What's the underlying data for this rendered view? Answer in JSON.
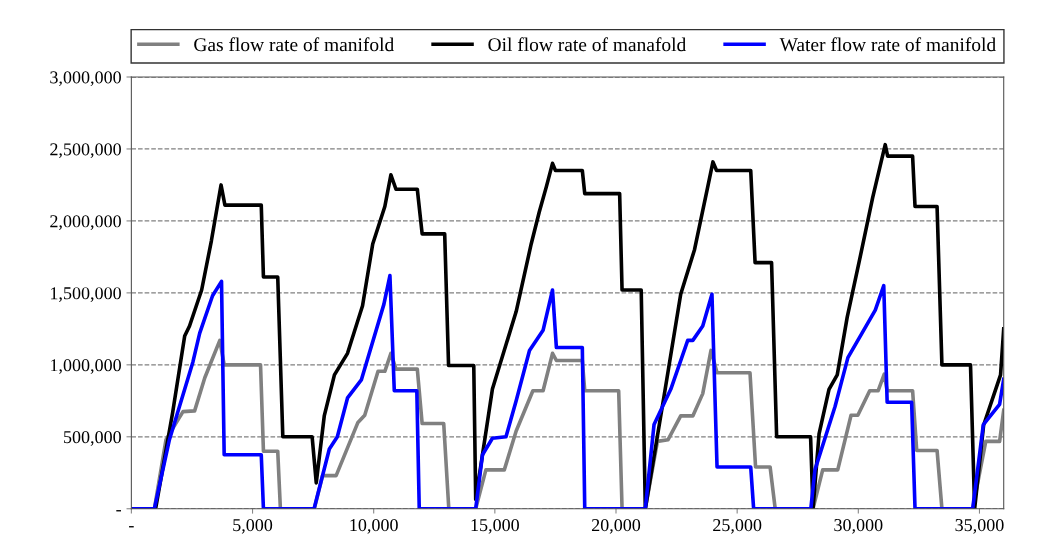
{
  "chart_data": {
    "type": "line",
    "xlim": [
      0,
      36000
    ],
    "xticks": [
      {
        "value": 0,
        "label": "-"
      },
      {
        "value": 5000,
        "label": "5,000"
      },
      {
        "value": 10000,
        "label": "10,000"
      },
      {
        "value": 15000,
        "label": "15,000"
      },
      {
        "value": 20000,
        "label": "20,000"
      },
      {
        "value": 25000,
        "label": "25,000"
      },
      {
        "value": 30000,
        "label": "30,000"
      },
      {
        "value": 35000,
        "label": "35,000"
      }
    ],
    "ylim": [
      0,
      3000000
    ],
    "yticks": [
      {
        "value": 0,
        "label": "-"
      },
      {
        "value": 500000,
        "label": "500,000"
      },
      {
        "value": 1000000,
        "label": "1,000,000"
      },
      {
        "value": 1500000,
        "label": "1,500,000"
      },
      {
        "value": 2000000,
        "label": "2,000,000"
      },
      {
        "value": 2500000,
        "label": "2,500,000"
      },
      {
        "value": 3000000,
        "label": "3,000,000"
      }
    ],
    "grid": "y",
    "legend": "top",
    "line_style": "solid",
    "marker": "none",
    "series": [
      {
        "name": "Gas flow rate of manifold",
        "color": "#808080",
        "x": [
          0,
          950,
          1430,
          2130,
          2610,
          3030,
          3650,
          3830,
          5330,
          5450,
          6040,
          6150,
          7550,
          7890,
          8450,
          9350,
          9630,
          10180,
          10460,
          10710,
          10920,
          11800,
          12000,
          12890,
          13100,
          14210,
          14630,
          15390,
          15880,
          16570,
          16990,
          17380,
          17540,
          18610,
          18710,
          20110,
          20250,
          21210,
          21710,
          22150,
          22670,
          23170,
          23580,
          23920,
          24170,
          25530,
          25760,
          26360,
          26570,
          28130,
          28530,
          29150,
          29700,
          29980,
          30470,
          30820,
          31070,
          31190,
          32240,
          32410,
          33250,
          33450,
          34720,
          35260,
          35830,
          36000
        ],
        "values": [
          0,
          0,
          480000,
          675000,
          680000,
          910000,
          1170000,
          1000000,
          1000000,
          400000,
          400000,
          0,
          0,
          230000,
          230000,
          600000,
          650000,
          955000,
          955000,
          1080000,
          970000,
          970000,
          592000,
          592000,
          0,
          0,
          270000,
          270000,
          540000,
          820000,
          820000,
          1080000,
          1030000,
          1030000,
          820000,
          820000,
          0,
          0,
          468000,
          480000,
          645000,
          645000,
          800000,
          1100000,
          945000,
          945000,
          290000,
          290000,
          0,
          0,
          270000,
          270000,
          650000,
          650000,
          820000,
          820000,
          935000,
          820000,
          820000,
          405000,
          405000,
          0,
          0,
          468000,
          468000,
          685000
        ]
      },
      {
        "name": "Oil flow rate of manafold",
        "color": "#000000",
        "x": [
          0,
          1000,
          1700,
          2200,
          2400,
          2900,
          3300,
          3700,
          3860,
          5360,
          5450,
          6040,
          6250,
          7460,
          7630,
          7960,
          8380,
          8920,
          9540,
          9960,
          10460,
          10710,
          10920,
          11800,
          12000,
          12930,
          13090,
          14130,
          14210,
          14900,
          15880,
          16500,
          16830,
          17130,
          17380,
          17500,
          18610,
          18710,
          20150,
          20250,
          21040,
          21210,
          21990,
          22670,
          23240,
          23790,
          24000,
          24150,
          25560,
          25740,
          26420,
          26630,
          28030,
          28130,
          28380,
          28790,
          29130,
          29540,
          30040,
          30590,
          31110,
          31210,
          32240,
          32340,
          33250,
          33450,
          34630,
          34800,
          35170,
          35870,
          36000
        ],
        "values": [
          0,
          0,
          665000,
          1200000,
          1270000,
          1520000,
          1860000,
          2250000,
          2110000,
          2110000,
          1610000,
          1610000,
          500000,
          500000,
          180000,
          645000,
          930000,
          1080000,
          1410000,
          1840000,
          2100000,
          2320000,
          2220000,
          2220000,
          1910000,
          1910000,
          995000,
          995000,
          64000,
          832000,
          1370000,
          1840000,
          2060000,
          2240000,
          2400000,
          2350000,
          2350000,
          2190000,
          2190000,
          1520000,
          1520000,
          0,
          790000,
          1490000,
          1800000,
          2240000,
          2410000,
          2350000,
          2350000,
          1710000,
          1710000,
          500000,
          500000,
          0,
          520000,
          830000,
          930000,
          1330000,
          1720000,
          2160000,
          2530000,
          2450000,
          2450000,
          2100000,
          2100000,
          1000000,
          1000000,
          0,
          580000,
          930000,
          1250000
        ]
      },
      {
        "name": "Water flow rate of manifold",
        "color": "#0000ff",
        "x": [
          0,
          950,
          1570,
          2540,
          2820,
          3350,
          3720,
          3830,
          5360,
          5450,
          7540,
          8170,
          8500,
          8920,
          9490,
          10420,
          10670,
          10850,
          11780,
          11880,
          14210,
          14490,
          14900,
          15460,
          15880,
          16430,
          16990,
          17380,
          17540,
          18610,
          18710,
          21210,
          21570,
          22260,
          22960,
          23170,
          23580,
          23960,
          24170,
          25560,
          25680,
          28040,
          28210,
          29040,
          29570,
          30700,
          31050,
          31190,
          32200,
          32340,
          34720,
          35160,
          35830,
          36000
        ],
        "values": [
          0,
          0,
          480000,
          1020000,
          1220000,
          1480000,
          1580000,
          375000,
          375000,
          0,
          0,
          415000,
          500000,
          770000,
          895000,
          1420000,
          1620000,
          820000,
          820000,
          0,
          0,
          375000,
          490000,
          500000,
          750000,
          1100000,
          1240000,
          1520000,
          1120000,
          1120000,
          0,
          0,
          585000,
          830000,
          1170000,
          1170000,
          1270000,
          1490000,
          290000,
          290000,
          0,
          0,
          270000,
          710000,
          1050000,
          1380000,
          1550000,
          740000,
          740000,
          0,
          0,
          585000,
          725000,
          900000
        ]
      }
    ]
  }
}
